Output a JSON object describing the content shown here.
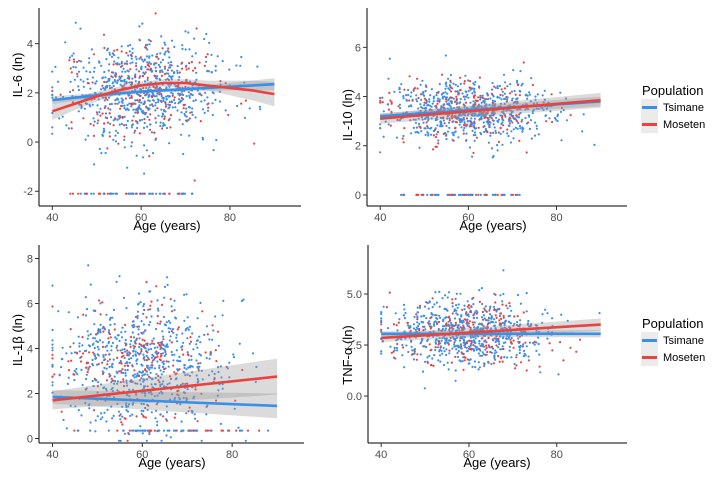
{
  "chart_data": [
    {
      "type": "scatter",
      "id": "il6",
      "ylabel": "IL-6 (ln)",
      "xlabel": "Age (years)",
      "xlim": [
        37,
        96
      ],
      "ylim": [
        -2.6,
        5.45
      ],
      "xticks": [
        40,
        60,
        80
      ],
      "yticks": [
        -2,
        0,
        2,
        4
      ],
      "yticks_labels": [
        "-2",
        "0",
        "2",
        "4"
      ],
      "floor_value": -2.1,
      "cloud": {
        "x_mean": 60,
        "x_sd": 9,
        "y_mean": 2.1,
        "y_sd": 1.0
      },
      "fits": [
        {
          "name": "Tsimane",
          "x": [
            40,
            50,
            60,
            70,
            80,
            90
          ],
          "y": [
            1.7,
            1.9,
            2.05,
            2.15,
            2.25,
            2.35
          ],
          "ci": [
            0.15,
            0.1,
            0.08,
            0.1,
            0.15,
            0.25
          ]
        },
        {
          "name": "Moseten",
          "x": [
            40,
            45,
            50,
            55,
            60,
            65,
            70,
            75,
            80,
            85,
            90
          ],
          "y": [
            1.25,
            1.55,
            1.85,
            2.1,
            2.3,
            2.4,
            2.4,
            2.3,
            2.2,
            2.1,
            1.95
          ],
          "ci": [
            0.35,
            0.25,
            0.2,
            0.15,
            0.15,
            0.15,
            0.15,
            0.2,
            0.3,
            0.4,
            0.5
          ]
        }
      ]
    },
    {
      "type": "scatter",
      "id": "il10",
      "ylabel": "IL-10 (ln)",
      "xlabel": "Age (years)",
      "xlim": [
        37,
        96
      ],
      "ylim": [
        -0.45,
        7.6
      ],
      "xticks": [
        40,
        60,
        80
      ],
      "yticks": [
        0,
        2,
        4,
        6
      ],
      "yticks_labels": [
        "0",
        "2",
        "4",
        "6"
      ],
      "floor_value": 0,
      "cloud": {
        "x_mean": 60,
        "x_sd": 9,
        "y_mean": 3.4,
        "y_sd": 0.6
      },
      "fits": [
        {
          "name": "Tsimane",
          "x": [
            40,
            90
          ],
          "y": [
            3.2,
            3.8
          ],
          "ci": [
            0.12,
            0.2
          ]
        },
        {
          "name": "Moseten",
          "x": [
            40,
            90
          ],
          "y": [
            3.1,
            3.85
          ],
          "ci": [
            0.2,
            0.3
          ]
        }
      ]
    },
    {
      "type": "scatter",
      "id": "il1b",
      "ylabel": "IL-1β (ln)",
      "xlabel": "Age (years)",
      "xlim": [
        37,
        96
      ],
      "ylim": [
        -0.2,
        8.6
      ],
      "xticks": [
        40,
        60,
        80
      ],
      "yticks": [
        0,
        2,
        4,
        6,
        8
      ],
      "yticks_labels": [
        "0",
        "2",
        "4",
        "6",
        "8"
      ],
      "floor_value": 0.35,
      "cloud": {
        "x_mean": 60,
        "x_sd": 9,
        "y_mean": 3.3,
        "y_sd": 1.4
      },
      "fits": [
        {
          "name": "Tsimane",
          "x": [
            40,
            90
          ],
          "y": [
            1.85,
            1.45
          ],
          "ci": [
            0.3,
            0.55
          ]
        },
        {
          "name": "Moseten",
          "x": [
            40,
            90
          ],
          "y": [
            1.7,
            2.75
          ],
          "ci": [
            0.4,
            0.8
          ]
        }
      ]
    },
    {
      "type": "scatter",
      "id": "tnfa",
      "ylabel": "TNF-α (ln)",
      "xlabel": "Age (years)",
      "xlim": [
        37,
        96
      ],
      "ylim": [
        -2.3,
        7.4
      ],
      "xticks": [
        40,
        60,
        80
      ],
      "yticks": [
        0.0,
        2.5,
        5.0
      ],
      "yticks_labels": [
        "0.0",
        "2.5",
        "5.0"
      ],
      "floor_value": null,
      "cloud": {
        "x_mean": 60,
        "x_sd": 9,
        "y_mean": 3.1,
        "y_sd": 0.8
      },
      "fits": [
        {
          "name": "Tsimane",
          "x": [
            40,
            90
          ],
          "y": [
            3.05,
            3.05
          ],
          "ci": [
            0.12,
            0.18
          ]
        },
        {
          "name": "Moseten",
          "x": [
            40,
            90
          ],
          "y": [
            2.85,
            3.5
          ],
          "ci": [
            0.2,
            0.3
          ]
        }
      ]
    }
  ],
  "legends": [
    {
      "id": "legend-top",
      "title": "Population",
      "entries": [
        {
          "name": "Tsimane",
          "color": "#3a8fe8"
        },
        {
          "name": "Moseten",
          "color": "#e8433f"
        }
      ]
    },
    {
      "id": "legend-bottom",
      "title": "Population",
      "entries": [
        {
          "name": "Tsimane",
          "color": "#3a8fe8"
        },
        {
          "name": "Moseten",
          "color": "#e8433f"
        }
      ]
    }
  ],
  "colors": {
    "Tsimane": "#3a8fe8",
    "Moseten": "#e8433f",
    "ci_band": "#999999"
  }
}
